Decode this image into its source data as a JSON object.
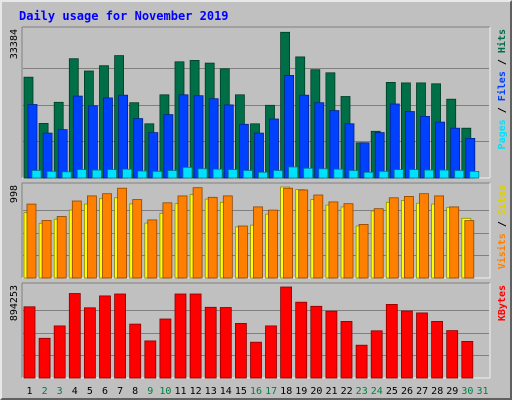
{
  "chart_data": [
    {
      "type": "bar",
      "title": "Daily usage for November 2019",
      "panel": "top",
      "max_label": "33384",
      "ylim": [
        0,
        33384
      ],
      "categories": [
        "1",
        "2",
        "3",
        "4",
        "5",
        "6",
        "7",
        "8",
        "9",
        "10",
        "11",
        "12",
        "13",
        "14",
        "15",
        "16",
        "17",
        "18",
        "19",
        "20",
        "21",
        "22",
        "23",
        "24",
        "25",
        "26",
        "27",
        "28",
        "29",
        "30",
        "31"
      ],
      "weekend_days": [
        "2",
        "3",
        "9",
        "10",
        "16",
        "17",
        "23",
        "24",
        "30",
        "31"
      ],
      "grid": true,
      "legend": "right",
      "series": [
        {
          "name": "Hits",
          "color": "#006e46",
          "values": [
            22900,
            12400,
            17200,
            27100,
            24300,
            25500,
            27800,
            17100,
            12300,
            18900,
            26400,
            26700,
            26100,
            24800,
            18900,
            12300,
            16500,
            33100,
            27500,
            24600,
            23900,
            18500,
            8000,
            10600,
            21700,
            21600,
            21600,
            21400,
            17900,
            11300,
            null
          ]
        },
        {
          "name": "Files",
          "color": "#0040ff",
          "values": [
            16700,
            10200,
            11000,
            18600,
            16400,
            18200,
            18800,
            13500,
            10300,
            14400,
            18900,
            18700,
            18000,
            16600,
            12200,
            10200,
            13400,
            23300,
            18800,
            17100,
            15300,
            12300,
            8000,
            10300,
            16800,
            15100,
            14000,
            12700,
            11300,
            9000,
            null
          ]
        },
        {
          "name": "Pages",
          "color": "#00e0ff",
          "values": [
            1700,
            1500,
            1400,
            1900,
            1800,
            1900,
            2000,
            1600,
            1500,
            1700,
            2400,
            2100,
            2000,
            1900,
            1700,
            1300,
            1700,
            2500,
            2200,
            2100,
            2000,
            1700,
            1300,
            1500,
            1900,
            1900,
            1800,
            1800,
            1700,
            1500,
            null
          ]
        }
      ]
    },
    {
      "type": "bar",
      "panel": "middle",
      "max_label": "998",
      "ylim": [
        0,
        998
      ],
      "grid": true,
      "legend": "right",
      "series": [
        {
          "name": "Sites",
          "color": "#ffff00",
          "values": [
            717,
            600,
            645,
            745,
            810,
            870,
            880,
            813,
            602,
            710,
            815,
            915,
            865,
            830,
            560,
            580,
            700,
            998,
            970,
            860,
            800,
            780,
            570,
            735,
            830,
            850,
            820,
            810,
            775,
            655,
            null
          ]
        },
        {
          "name": "Visits",
          "color": "#ff8000",
          "values": [
            810,
            632,
            675,
            845,
            900,
            925,
            985,
            860,
            637,
            825,
            900,
            990,
            885,
            900,
            570,
            780,
            745,
            985,
            965,
            910,
            835,
            815,
            588,
            760,
            880,
            895,
            925,
            900,
            780,
            630,
            null
          ]
        }
      ]
    },
    {
      "type": "bar",
      "panel": "bottom",
      "max_label": "894253",
      "ylim": [
        0,
        894253
      ],
      "grid": true,
      "legend": "right",
      "series": [
        {
          "name": "KBytes",
          "color": "#ff0000",
          "values": [
            700000,
            390000,
            512000,
            830000,
            690000,
            807000,
            825000,
            530000,
            365000,
            580000,
            825000,
            825000,
            695000,
            693000,
            537000,
            352000,
            512000,
            894253,
            745000,
            705000,
            656000,
            556000,
            322000,
            464000,
            723000,
            658000,
            640000,
            556000,
            466000,
            360000,
            null
          ]
        }
      ]
    }
  ]
}
